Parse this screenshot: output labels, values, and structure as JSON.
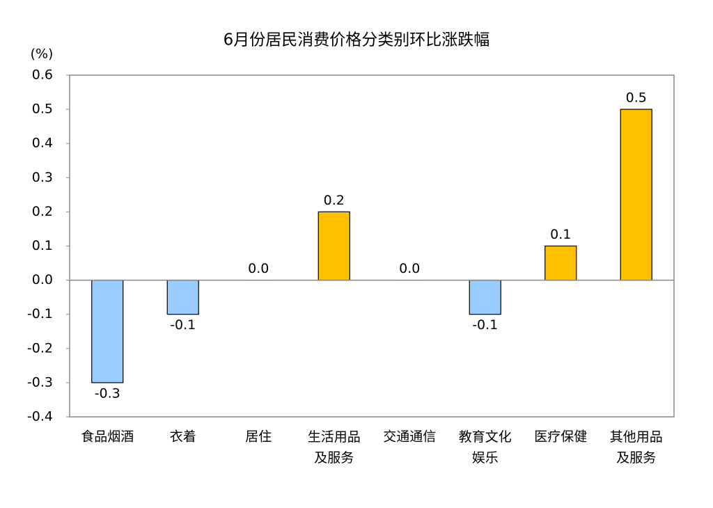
{
  "chart_data": {
    "type": "bar",
    "title": "6月份居民消费价格分类别环比涨跌幅",
    "y_axis_label": "(%)",
    "categories": [
      "食品烟酒",
      "衣着",
      "居住",
      "生活用品及服务",
      "交通通信",
      "教育文化娱乐",
      "医疗保健",
      "其他用品及服务"
    ],
    "values": [
      -0.3,
      -0.1,
      0,
      0.2,
      0,
      -0.1,
      0.1,
      0.5
    ],
    "value_labels": [
      "-0.3",
      "-0.1",
      "0.0",
      "0.2",
      "0.0",
      "-0.1",
      "0.1",
      "0.5"
    ],
    "positive_color": "#ffc000",
    "negative_color": "#99ccff",
    "ylim": [
      -0.4,
      0.6
    ],
    "yticks": [
      -0.4,
      -0.3,
      -0.2,
      -0.1,
      {
        "value": 0,
        "label": "0.0"
      },
      0.1,
      0.2,
      0.3,
      0.4,
      0.5,
      0.6
    ],
    "grid": false
  }
}
